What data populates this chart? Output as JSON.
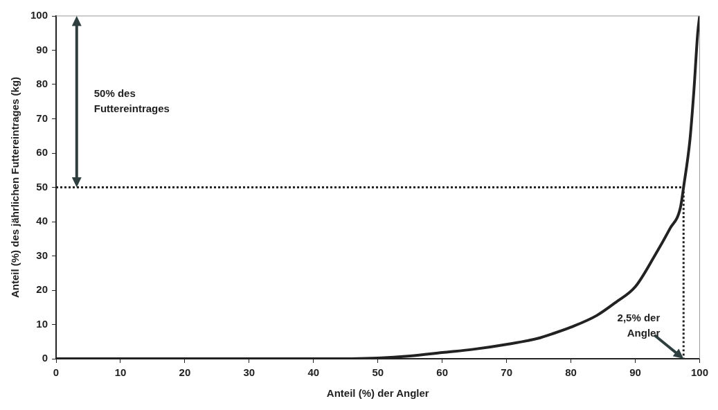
{
  "chart_data": {
    "type": "line",
    "xlabel": "Anteil (%) der Angler",
    "ylabel": "Anteil (%) des jährlichen Futtereintrages (kg)",
    "xlim": [
      0,
      100
    ],
    "ylim": [
      0,
      100
    ],
    "xticks": [
      0,
      10,
      20,
      30,
      40,
      50,
      60,
      70,
      80,
      90,
      100
    ],
    "yticks": [
      0,
      10,
      20,
      30,
      40,
      50,
      60,
      70,
      80,
      90,
      100
    ],
    "grid": false,
    "legend": false,
    "marker": "none",
    "series": [
      {
        "color": "#222222",
        "line_style": "solid",
        "x": [
          0,
          10,
          20,
          30,
          40,
          44,
          50,
          55,
          60,
          65,
          70,
          75,
          77,
          80,
          84,
          87,
          90,
          93,
          95.4,
          97,
          97.5,
          98.5,
          99.1,
          99.7,
          100
        ],
        "values": [
          0,
          0,
          0,
          0,
          0,
          0,
          0.2,
          0.8,
          1.8,
          2.8,
          4.2,
          6,
          7.2,
          9.2,
          12.6,
          16.5,
          21,
          30,
          38,
          44,
          50,
          64,
          78,
          95,
          100
        ]
      },
      {
        "color": "#222222",
        "line_style": "dotted",
        "x": [
          0,
          97.5,
          97.5
        ],
        "values": [
          50,
          50,
          0
        ]
      }
    ],
    "annotations": [
      "50% des Futtereintrages",
      {
        "text": "2,5% der Angler",
        "x": 97.5,
        "y": 0
      }
    ]
  }
}
